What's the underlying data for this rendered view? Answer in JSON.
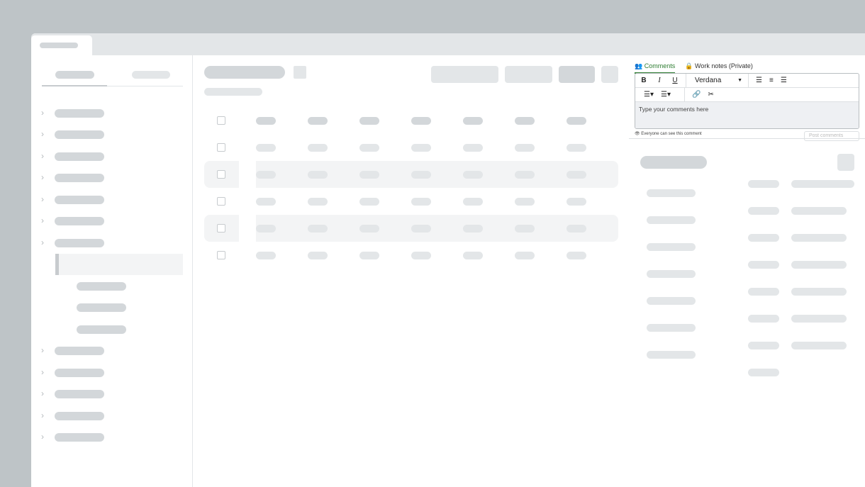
{
  "comments_panel": {
    "tabs": [
      {
        "label": "Comments",
        "icon": "users-icon",
        "active": true
      },
      {
        "label": "Work notes (Private)",
        "icon": "lock-icon",
        "active": false
      }
    ],
    "toolbar": {
      "bold": "B",
      "italic": "I",
      "underline": "U",
      "font": "Verdana",
      "buttons": [
        "align-left-icon",
        "align-center-icon",
        "align-right-icon",
        "bullet-list-icon",
        "numbered-list-icon",
        "link-icon",
        "unlink-icon"
      ]
    },
    "placeholder": "Type your comments here",
    "visibility_note": "Everyone can see this comment",
    "post_button": "Post comments"
  },
  "colors": {
    "accent": "#2e7d32",
    "skeleton": "#d3d7da",
    "background": "#bec4c7"
  }
}
